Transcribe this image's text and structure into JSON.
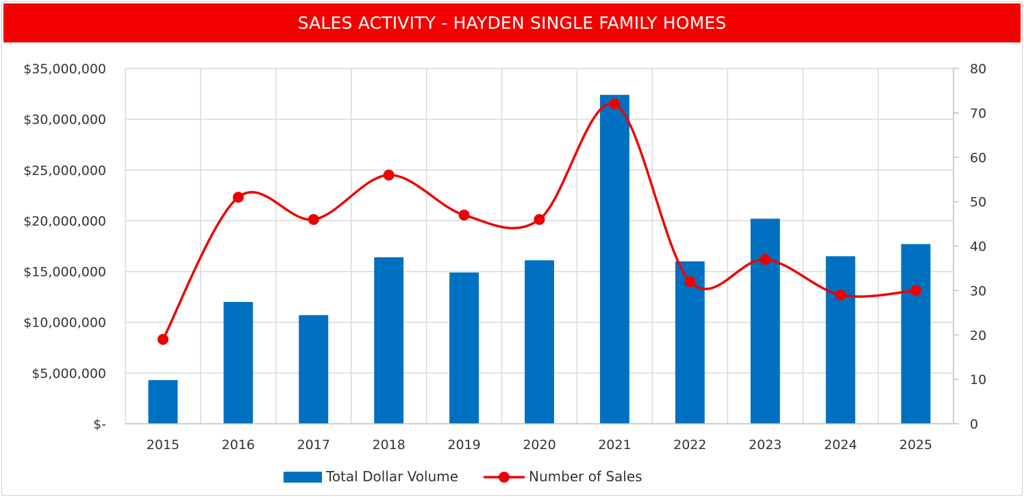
{
  "chart_data": {
    "type": "bar",
    "title": "SALES ACTIVITY - HAYDEN SINGLE FAMILY HOMES",
    "categories": [
      "2015",
      "2016",
      "2017",
      "2018",
      "2019",
      "2020",
      "2021",
      "2022",
      "2023",
      "2024",
      "2025"
    ],
    "series": [
      {
        "name": "Total Dollar Volume",
        "type": "bar",
        "axis": "left",
        "color": "#0070c0",
        "values": [
          4300000,
          12000000,
          10700000,
          16400000,
          14900000,
          16100000,
          32400000,
          16000000,
          20200000,
          16500000,
          17700000
        ]
      },
      {
        "name": "Number of Sales",
        "type": "line",
        "axis": "right",
        "color": "#ee0000",
        "smooth": true,
        "values": [
          19,
          51,
          46,
          56,
          47,
          46,
          72,
          32,
          37,
          29,
          30
        ]
      }
    ],
    "y_left": {
      "ylim": [
        0,
        35000000
      ],
      "tick_labels": [
        "$-",
        "$5,000,000",
        "$10,000,000",
        "$15,000,000",
        "$20,000,000",
        "$25,000,000",
        "$30,000,000",
        "$35,000,000"
      ]
    },
    "y_right": {
      "ylim": [
        0,
        80
      ],
      "tick_labels": [
        "0",
        "10",
        "20",
        "30",
        "40",
        "50",
        "60",
        "70",
        "80"
      ]
    },
    "grid": true,
    "legend": "bottom-center"
  }
}
